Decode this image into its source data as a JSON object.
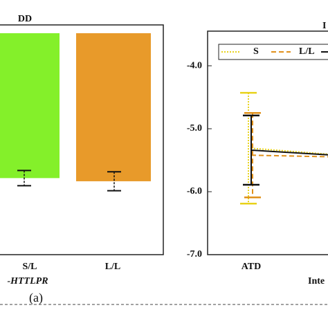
{
  "chart_data": [
    {
      "type": "bar",
      "title": "DD",
      "x_label": "-HTTLPR",
      "panel_label": "(a)",
      "categories": [
        "S/L",
        "L/L"
      ],
      "values": [
        -5.79,
        -5.84
      ],
      "errors": [
        0.12,
        0.15
      ],
      "colors": [
        "#84f02a",
        "#e89a2a"
      ],
      "ylim": [
        -7.0,
        -3.5
      ]
    },
    {
      "type": "line",
      "title": "I",
      "x_label": "Inte",
      "categories": [
        "ATD",
        null
      ],
      "series": [
        {
          "name": "S",
          "color": "#e8d21a",
          "dash": "2,2",
          "values": [
            -5.31,
            -5.46
          ],
          "errors": [
            0.88,
            null
          ]
        },
        {
          "name": "L/L",
          "color": "#e0901a",
          "dash": "7,4",
          "values": [
            -5.42,
            -5.46
          ],
          "errors": [
            0.67,
            null
          ]
        },
        {
          "name": null,
          "color": "#111111",
          "dash": null,
          "values": [
            -5.34,
            -5.46
          ],
          "errors": [
            0.55,
            null
          ]
        }
      ],
      "ylim": [
        -7.0,
        -3.45
      ],
      "yticks": [
        {
          "value": -4,
          "label": "-4.0"
        },
        {
          "value": -5,
          "label": "-5.0"
        },
        {
          "value": -6,
          "label": "-6.0"
        },
        {
          "value": -7,
          "label": "-7.0"
        }
      ]
    }
  ]
}
